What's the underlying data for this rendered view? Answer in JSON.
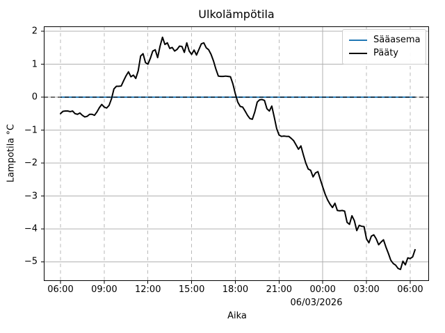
{
  "chart_data": {
    "type": "line",
    "title": "Ulkolämpötila",
    "xlabel": "Aika",
    "ylabel": "Lampotila °C",
    "date_annotation": "06/03/2026",
    "legend_position": "upper right",
    "x_axis": {
      "tick_labels": [
        "06:00",
        "09:00",
        "12:00",
        "15:00",
        "18:00",
        "21:00",
        "00:00",
        "03:00",
        "06:00"
      ],
      "tick_hours": [
        6,
        9,
        12,
        15,
        18,
        21,
        24,
        27,
        30
      ],
      "range_hours": [
        4.855,
        31.29
      ]
    },
    "y_axis": {
      "tick_labels": [
        "2",
        "1",
        "0",
        "−1",
        "−2",
        "−3",
        "−4",
        "−5"
      ],
      "ticks": [
        2,
        1,
        0,
        -1,
        -2,
        -3,
        -4,
        -5
      ],
      "range": [
        -5.58,
        2.15
      ]
    },
    "grid": {
      "horizontal_style": "solid",
      "vertical_style": "dashed",
      "midnight_vertical_style": "solid",
      "color": "#b0b0b0"
    },
    "zero_line": {
      "y": 0,
      "style": "dashed",
      "color": "#000000"
    },
    "series": [
      {
        "name": "Sääasema",
        "color": "#1f77b4",
        "style": "solid",
        "start_hour": 6.0,
        "end_hour": 30.33,
        "constant_value": 0.0
      },
      {
        "name": "Pääty",
        "color": "#000000",
        "style": "solid",
        "start_hour": 6.0,
        "step_minutes": 10,
        "values": [
          -0.5,
          -0.43,
          -0.42,
          -0.42,
          -0.44,
          -0.42,
          -0.5,
          -0.52,
          -0.48,
          -0.55,
          -0.6,
          -0.58,
          -0.52,
          -0.52,
          -0.55,
          -0.45,
          -0.32,
          -0.22,
          -0.3,
          -0.33,
          -0.25,
          -0.05,
          0.25,
          0.33,
          0.33,
          0.34,
          0.5,
          0.65,
          0.77,
          0.62,
          0.67,
          0.57,
          0.8,
          1.25,
          1.32,
          1.05,
          1.0,
          1.18,
          1.4,
          1.44,
          1.2,
          1.55,
          1.82,
          1.6,
          1.65,
          1.48,
          1.51,
          1.4,
          1.45,
          1.55,
          1.54,
          1.36,
          1.65,
          1.4,
          1.3,
          1.43,
          1.28,
          1.45,
          1.62,
          1.65,
          1.5,
          1.44,
          1.3,
          1.1,
          0.85,
          0.64,
          0.63,
          0.63,
          0.64,
          0.63,
          0.62,
          0.4,
          0.1,
          -0.15,
          -0.28,
          -0.3,
          -0.42,
          -0.55,
          -0.65,
          -0.67,
          -0.45,
          -0.15,
          -0.08,
          -0.07,
          -0.1,
          -0.35,
          -0.42,
          -0.27,
          -0.6,
          -0.95,
          -1.15,
          -1.19,
          -1.18,
          -1.19,
          -1.19,
          -1.25,
          -1.32,
          -1.45,
          -1.58,
          -1.48,
          -1.75,
          -2.0,
          -2.18,
          -2.22,
          -2.42,
          -2.3,
          -2.26,
          -2.5,
          -2.73,
          -2.95,
          -3.12,
          -3.25,
          -3.35,
          -3.22,
          -3.44,
          -3.45,
          -3.44,
          -3.46,
          -3.8,
          -3.86,
          -3.6,
          -3.75,
          -4.05,
          -3.89,
          -3.92,
          -3.93,
          -4.3,
          -4.42,
          -4.22,
          -4.18,
          -4.3,
          -4.48,
          -4.4,
          -4.33,
          -4.55,
          -4.74,
          -4.95,
          -5.05,
          -5.1,
          -5.2,
          -5.23,
          -4.98,
          -5.09,
          -4.88,
          -4.9,
          -4.85,
          -4.63
        ]
      }
    ]
  }
}
